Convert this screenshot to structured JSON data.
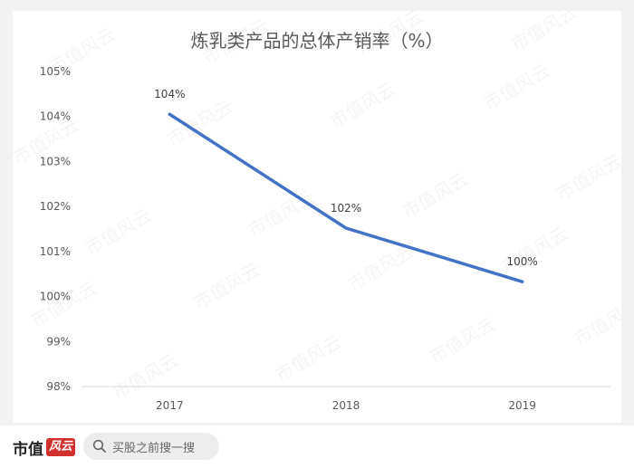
{
  "chart_data": {
    "type": "line",
    "title": "炼乳类产品的总体产销率（%）",
    "categories": [
      "2017",
      "2018",
      "2019"
    ],
    "series": [
      {
        "values": [
          104.05,
          101.52,
          100.33
        ],
        "data_labels": [
          "104%",
          "102%",
          "100%"
        ],
        "color": "#4472c4"
      }
    ],
    "y_ticks": [
      "105%",
      "104%",
      "103%",
      "102%",
      "101%",
      "100%",
      "99%",
      "98%"
    ],
    "ylim": [
      98,
      105
    ],
    "grid": false,
    "legend": "none"
  },
  "watermark": "市值风云",
  "footer": {
    "brand_text": "市值",
    "brand_logo_text": "风云",
    "search_icon": "search-icon",
    "search_text": "买股之前搜一搜"
  }
}
